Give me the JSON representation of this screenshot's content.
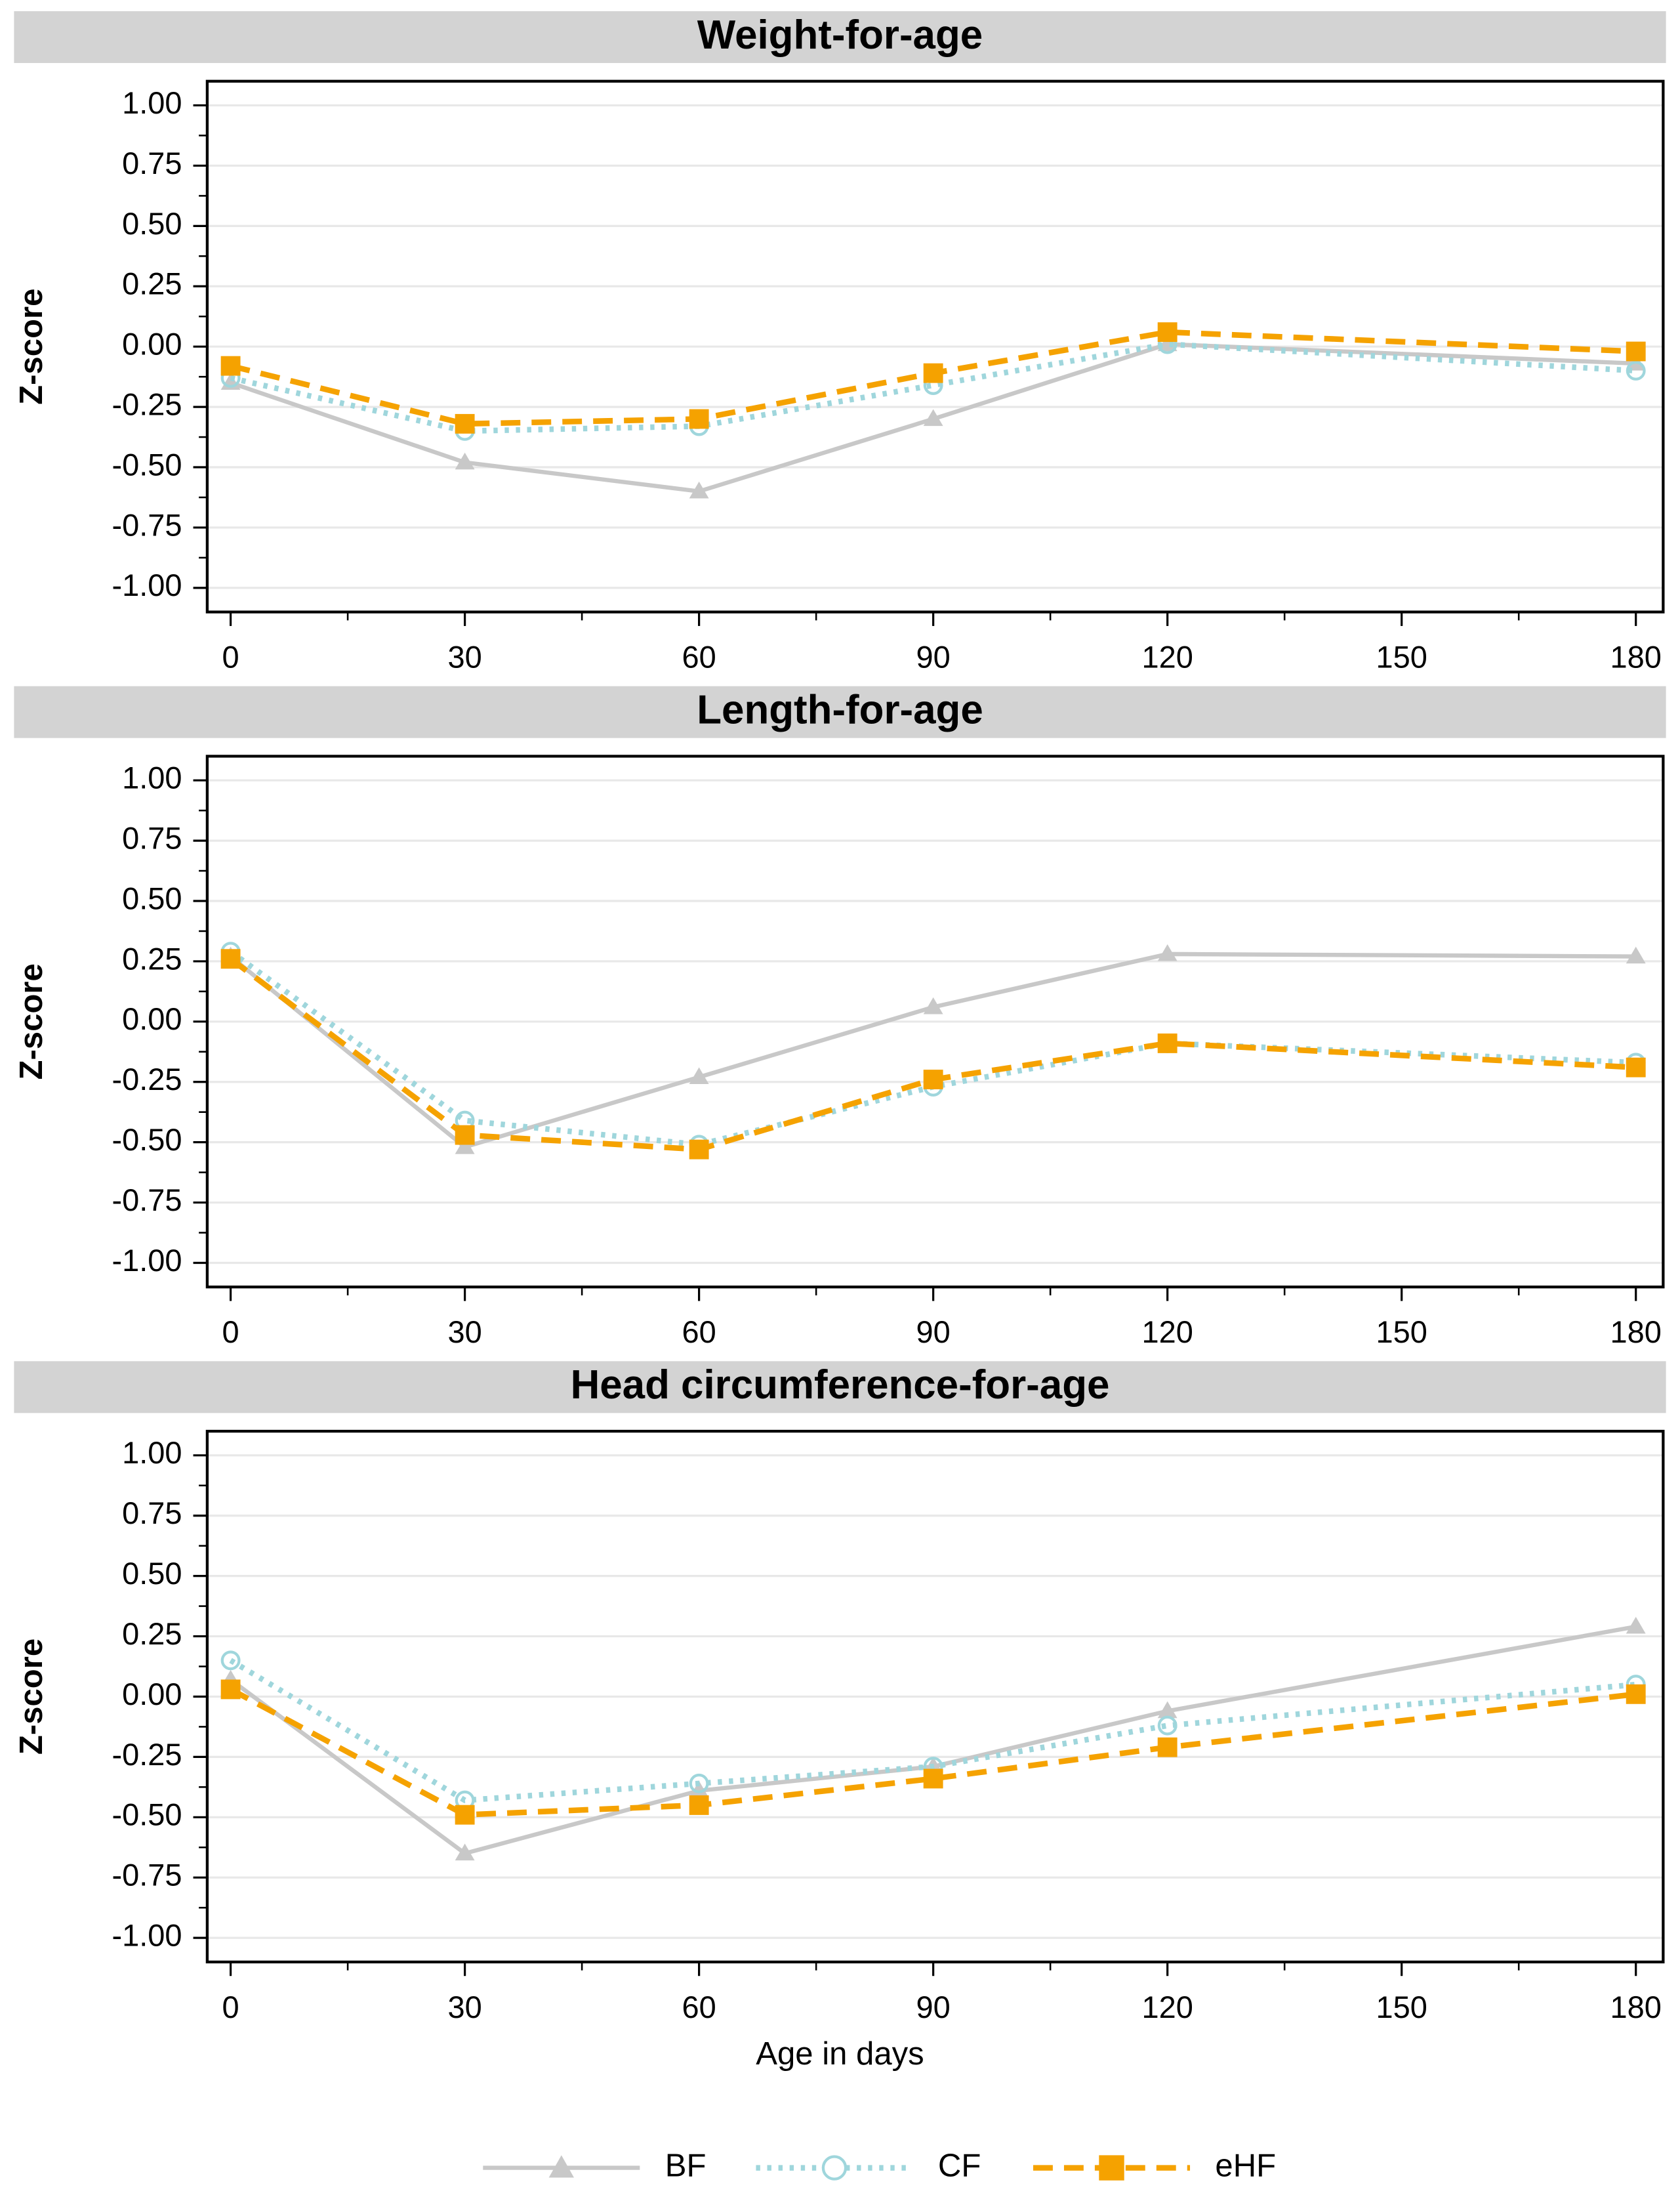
{
  "chart_data": [
    {
      "type": "line",
      "title": "Weight-for-age",
      "y_label": "Z-score",
      "x": [
        0,
        30,
        60,
        90,
        120,
        180
      ],
      "series": [
        {
          "name": "BF",
          "color": "#c8c8c8",
          "marker": "triangle",
          "line_style": "solid",
          "values": [
            -0.15,
            -0.48,
            -0.6,
            -0.3,
            0.01,
            -0.07
          ]
        },
        {
          "name": "CF",
          "color": "#9fd6dc",
          "marker": "open-circle",
          "line_style": "dotted",
          "values": [
            -0.13,
            -0.35,
            -0.33,
            -0.16,
            0.01,
            -0.1
          ]
        },
        {
          "name": "eHF",
          "color": "#f5a200",
          "marker": "square",
          "line_style": "dashed",
          "values": [
            -0.08,
            -0.32,
            -0.3,
            -0.11,
            0.06,
            -0.02
          ]
        }
      ],
      "xlim": [
        -3,
        183.5
      ],
      "ylim": [
        -1.1,
        1.1
      ],
      "xticks": [
        0,
        30,
        60,
        90,
        120,
        150,
        180
      ],
      "yticks": [
        {
          "value": 1,
          "label": "1.00"
        },
        {
          "value": 0.75,
          "label": "0.75"
        },
        {
          "value": 0.5,
          "label": "0.50"
        },
        {
          "value": 0.25,
          "label": "0.25"
        },
        {
          "value": 0,
          "label": "0.00"
        },
        {
          "value": -0.25,
          "label": "-0.25"
        },
        {
          "value": -0.5,
          "label": "-0.50"
        },
        {
          "value": -0.75,
          "label": "-0.75"
        },
        {
          "value": -1,
          "label": "-1.00"
        }
      ],
      "grid": true
    },
    {
      "type": "line",
      "title": "Length-for-age",
      "y_label": "Z-score",
      "x": [
        0,
        30,
        60,
        90,
        120,
        180
      ],
      "series": [
        {
          "name": "BF",
          "color": "#c8c8c8",
          "marker": "triangle",
          "line_style": "solid",
          "values": [
            0.27,
            -0.52,
            -0.23,
            0.06,
            0.28,
            0.27
          ]
        },
        {
          "name": "CF",
          "color": "#9fd6dc",
          "marker": "open-circle",
          "line_style": "dotted",
          "values": [
            0.29,
            -0.41,
            -0.51,
            -0.27,
            -0.09,
            -0.17
          ]
        },
        {
          "name": "eHF",
          "color": "#f5a200",
          "marker": "square",
          "line_style": "dashed",
          "values": [
            0.26,
            -0.47,
            -0.53,
            -0.24,
            -0.09,
            -0.19
          ]
        }
      ],
      "xlim": [
        -3,
        183.5
      ],
      "ylim": [
        -1.1,
        1.1
      ],
      "xticks": [
        0,
        30,
        60,
        90,
        120,
        150,
        180
      ],
      "yticks": [
        {
          "value": 1,
          "label": "1.00"
        },
        {
          "value": 0.75,
          "label": "0.75"
        },
        {
          "value": 0.5,
          "label": "0.50"
        },
        {
          "value": 0.25,
          "label": "0.25"
        },
        {
          "value": 0,
          "label": "0.00"
        },
        {
          "value": -0.25,
          "label": "-0.25"
        },
        {
          "value": -0.5,
          "label": "-0.50"
        },
        {
          "value": -0.75,
          "label": "-0.75"
        },
        {
          "value": -1,
          "label": "-1.00"
        }
      ],
      "grid": true
    },
    {
      "type": "line",
      "title": "Head circumference-for-age",
      "y_label": "Z-score",
      "x_label": "Age in days",
      "x": [
        0,
        30,
        60,
        90,
        120,
        180
      ],
      "series": [
        {
          "name": "BF",
          "color": "#c8c8c8",
          "marker": "triangle",
          "line_style": "solid",
          "values": [
            0.07,
            -0.65,
            -0.39,
            -0.29,
            -0.06,
            0.29
          ]
        },
        {
          "name": "CF",
          "color": "#9fd6dc",
          "marker": "open-circle",
          "line_style": "dotted",
          "values": [
            0.15,
            -0.43,
            -0.36,
            -0.29,
            -0.12,
            0.05
          ]
        },
        {
          "name": "eHF",
          "color": "#f5a200",
          "marker": "square",
          "line_style": "dashed",
          "values": [
            0.03,
            -0.49,
            -0.45,
            -0.34,
            -0.21,
            0.01
          ]
        }
      ],
      "xlim": [
        -3,
        183.5
      ],
      "ylim": [
        -1.1,
        1.1
      ],
      "xticks": [
        0,
        30,
        60,
        90,
        120,
        150,
        180
      ],
      "yticks": [
        {
          "value": 1,
          "label": "1.00"
        },
        {
          "value": 0.75,
          "label": "0.75"
        },
        {
          "value": 0.5,
          "label": "0.50"
        },
        {
          "value": 0.25,
          "label": "0.25"
        },
        {
          "value": 0,
          "label": "0.00"
        },
        {
          "value": -0.25,
          "label": "-0.25"
        },
        {
          "value": -0.5,
          "label": "-0.50"
        },
        {
          "value": -0.75,
          "label": "-0.75"
        },
        {
          "value": -1,
          "label": "-1.00"
        }
      ],
      "grid": true
    }
  ]
}
